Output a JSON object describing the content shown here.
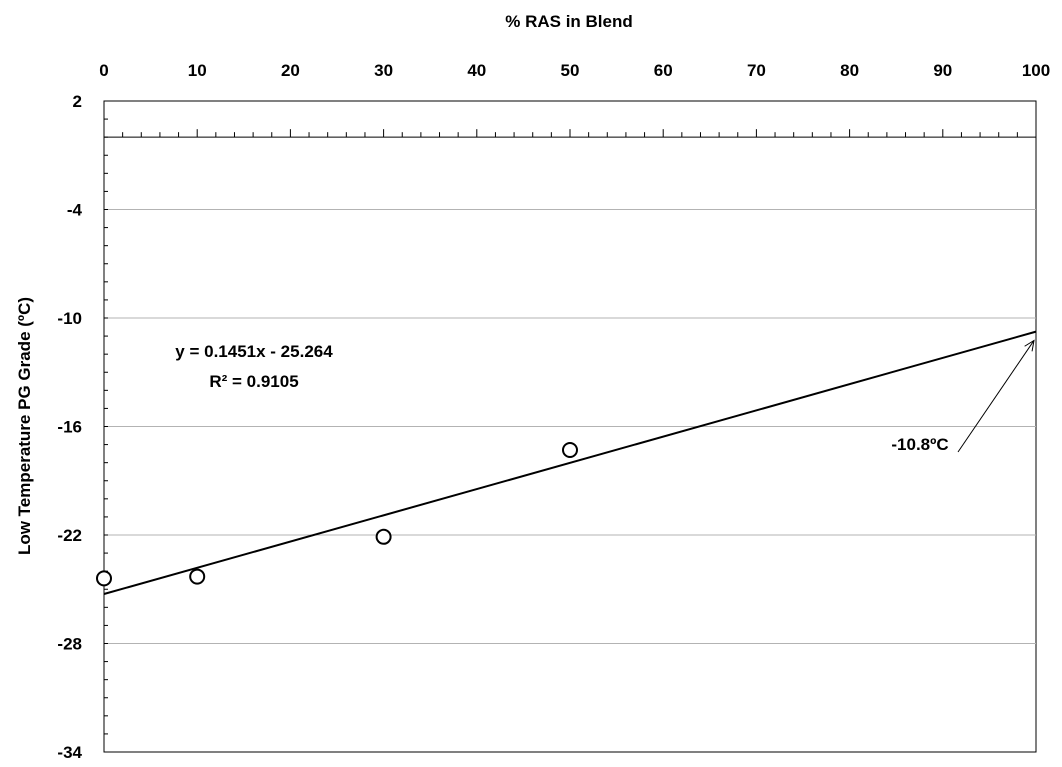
{
  "chart_data": {
    "type": "scatter",
    "title": "",
    "xlabel": "% RAS in Blend",
    "ylabel": "Low Temperature  PG Grade (ºC)",
    "xlim": [
      0,
      100
    ],
    "ylim": [
      -34,
      2
    ],
    "x_ticks": [
      "0",
      "10",
      "20",
      "30",
      "40",
      "50",
      "60",
      "70",
      "80",
      "90",
      "100"
    ],
    "y_ticks": [
      "2",
      "-4",
      "-10",
      "-16",
      "-22",
      "-28",
      "-34"
    ],
    "x_axis_position": "top",
    "x_axis_crosses_at_y": 0,
    "grid": "horizontal",
    "legend": "none",
    "series": [
      {
        "marker": "open-circle",
        "x": [
          0,
          10,
          30,
          50
        ],
        "y": [
          -24.4,
          -24.3,
          -22.1,
          -17.3
        ]
      }
    ],
    "trendline": {
      "type": "linear",
      "slope": 0.1451,
      "intercept": -25.264,
      "x_range": [
        0,
        100
      ],
      "equation_label": "y = 0.1451x - 25.264",
      "r2_label": "R² = 0.9105"
    },
    "annotation": {
      "text": "-10.8ºC",
      "points_to": {
        "x": 100,
        "y": -10.8
      }
    },
    "colors": {
      "line": "#000000",
      "grid": "#b3b3b3",
      "marker_fill": "#ffffff"
    }
  }
}
